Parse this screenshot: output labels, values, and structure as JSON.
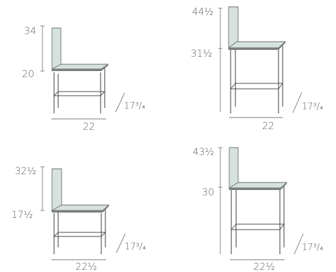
{
  "chairs": [
    {
      "id": "top-left",
      "back_height": "34",
      "seat_height": "20",
      "width": "22",
      "depth": "17³/₄"
    },
    {
      "id": "top-right",
      "back_height": "44½",
      "seat_height": "31½",
      "width": "22",
      "depth": "17³/₄"
    },
    {
      "id": "bottom-left",
      "back_height": "32½",
      "seat_height": "17½",
      "width": "22½",
      "depth": "17³/₄"
    },
    {
      "id": "bottom-right",
      "back_height": "43½",
      "seat_height": "30",
      "width": "22½",
      "depth": "17³/₄"
    }
  ]
}
